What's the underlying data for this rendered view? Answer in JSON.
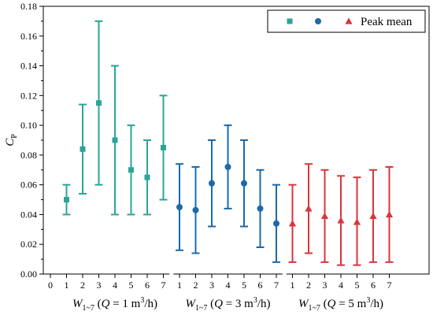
{
  "chart_data": {
    "type": "scatter",
    "title": "",
    "ylabel": {
      "main": "C",
      "sub": "P"
    },
    "ylim": [
      0,
      0.18
    ],
    "yticks": [
      "0.00",
      "0.02",
      "0.04",
      "0.06",
      "0.08",
      "0.10",
      "0.12",
      "0.14",
      "0.16",
      "0.18"
    ],
    "x_ticks": [
      "0",
      "1",
      "2",
      "3",
      "4",
      "5",
      "6",
      "7",
      "1",
      "2",
      "3",
      "4",
      "5",
      "6",
      "7",
      "1",
      "2",
      "3",
      "4",
      "5",
      "6",
      "7"
    ],
    "groups": [
      {
        "label_main": "W",
        "label_sub": "1~7",
        "label_q": "Q",
        "label_rest": " = 1 m",
        "label_sup": "3",
        "label_tail": "/h)"
      },
      {
        "label_main": "W",
        "label_sub": "1~7",
        "label_q": "Q",
        "label_rest": " = 3 m",
        "label_sup": "3",
        "label_tail": "/h)"
      },
      {
        "label_main": "W",
        "label_sub": "1~7",
        "label_q": "Q",
        "label_rest": " = 5 m",
        "label_sup": "3",
        "label_tail": "/h)"
      }
    ],
    "series": [
      {
        "color": "#2ba59a",
        "marker": "square",
        "x": [
          1,
          2,
          3,
          4,
          5,
          6,
          7
        ],
        "mean": [
          0.05,
          0.084,
          0.115,
          0.09,
          0.07,
          0.065,
          0.085
        ],
        "low": [
          0.04,
          0.054,
          0.06,
          0.04,
          0.04,
          0.04,
          0.05
        ],
        "high": [
          0.06,
          0.114,
          0.17,
          0.14,
          0.1,
          0.09,
          0.12
        ]
      },
      {
        "color": "#1a6aa8",
        "marker": "circle",
        "x": [
          1,
          2,
          3,
          4,
          5,
          6,
          7
        ],
        "mean": [
          0.045,
          0.043,
          0.061,
          0.072,
          0.061,
          0.044,
          0.034
        ],
        "low": [
          0.016,
          0.014,
          0.032,
          0.044,
          0.032,
          0.018,
          0.008
        ],
        "high": [
          0.074,
          0.072,
          0.09,
          0.1,
          0.09,
          0.07,
          0.06
        ]
      },
      {
        "color": "#d9363e",
        "marker": "triangle",
        "x": [
          1,
          2,
          3,
          4,
          5,
          6,
          7
        ],
        "mean": [
          0.034,
          0.044,
          0.039,
          0.036,
          0.035,
          0.039,
          0.04
        ],
        "low": [
          0.008,
          0.014,
          0.008,
          0.006,
          0.006,
          0.008,
          0.008
        ],
        "high": [
          0.06,
          0.074,
          0.07,
          0.066,
          0.065,
          0.07,
          0.072
        ]
      }
    ],
    "legend": {
      "placement": "top-right",
      "text": "Peak mean"
    },
    "grid": false
  }
}
